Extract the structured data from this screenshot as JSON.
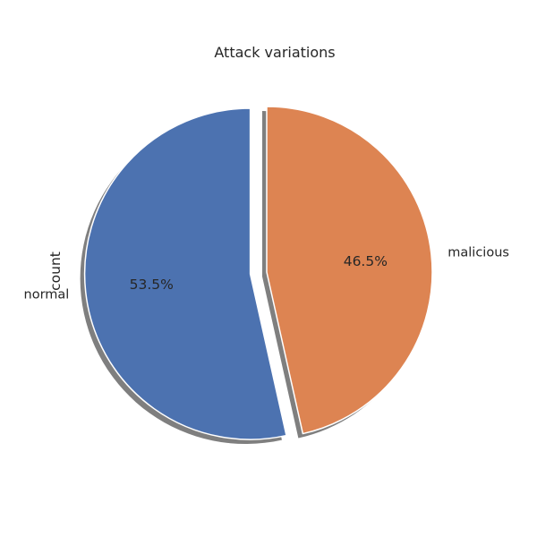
{
  "chart_data": {
    "type": "pie",
    "title": "Attack variations",
    "ylabel": "count",
    "categories": [
      "normal",
      "malicious"
    ],
    "values": [
      53.5,
      46.5
    ],
    "percent_labels": [
      "53.5%",
      "46.5%"
    ],
    "colors": [
      "#4c72b0",
      "#dd8452"
    ],
    "explode": [
      0.1,
      0
    ],
    "start_angle_deg": 90,
    "shadow": true
  }
}
